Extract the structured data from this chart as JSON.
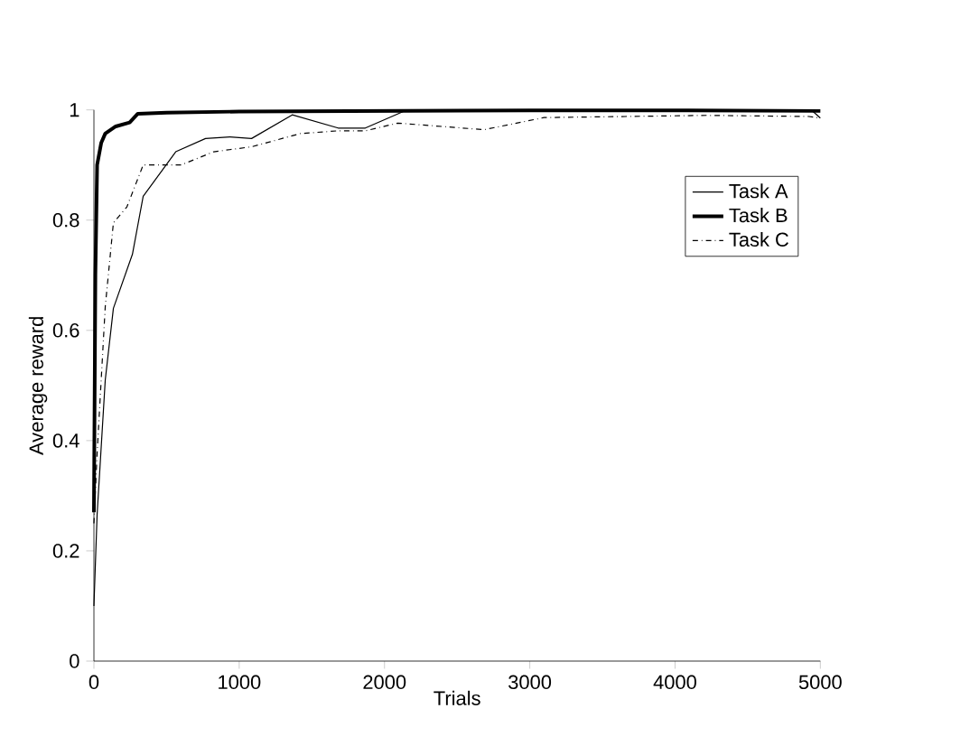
{
  "chart_data": {
    "type": "line",
    "xlabel": "Trials",
    "ylabel": "Average reward",
    "xlim": [
      0,
      5000
    ],
    "ylim": [
      0,
      1
    ],
    "xticks": [
      0,
      1000,
      2000,
      3000,
      4000,
      5000
    ],
    "yticks": [
      0,
      0.2,
      0.4,
      0.6,
      0.8,
      1
    ],
    "grid": false,
    "legend": "top right",
    "marker": "none",
    "series": [
      {
        "name": "Task A",
        "color": "#000000",
        "line_style": "solid",
        "x": [
          0,
          22,
          78,
          134,
          265,
          339,
          563,
          768,
          936,
          1085,
          1365,
          1681,
          1868,
          2129,
          2500,
          3000,
          3500,
          4000,
          4500,
          4950,
          5000
        ],
        "values": [
          0.1,
          0.266,
          0.51,
          0.64,
          0.738,
          0.843,
          0.924,
          0.948,
          0.951,
          0.948,
          0.991,
          0.967,
          0.967,
          0.997,
          0.998,
          0.998,
          0.998,
          0.998,
          0.998,
          0.997,
          0.985
        ]
      },
      {
        "name": "Task B",
        "color": "#000000",
        "line_style": "solid",
        "x": [
          0,
          10,
          22,
          50,
          78,
          150,
          246,
          302,
          500,
          1000,
          2000,
          3000,
          4000,
          5000
        ],
        "values": [
          0.27,
          0.7,
          0.9,
          0.94,
          0.957,
          0.97,
          0.977,
          0.993,
          0.995,
          0.997,
          0.998,
          0.999,
          0.999,
          0.998
        ]
      },
      {
        "name": "Task C",
        "color": "#000000",
        "line_style": "dashdot",
        "x": [
          0,
          22,
          78,
          134,
          227,
          339,
          600,
          824,
          1085,
          1421,
          1681,
          1868,
          2092,
          2685,
          3098,
          3658,
          4217,
          4922,
          5000
        ],
        "values": [
          0.25,
          0.377,
          0.643,
          0.795,
          0.824,
          0.9,
          0.9,
          0.924,
          0.933,
          0.957,
          0.962,
          0.962,
          0.976,
          0.964,
          0.986,
          0.988,
          0.99,
          0.988,
          0.985
        ]
      }
    ]
  }
}
